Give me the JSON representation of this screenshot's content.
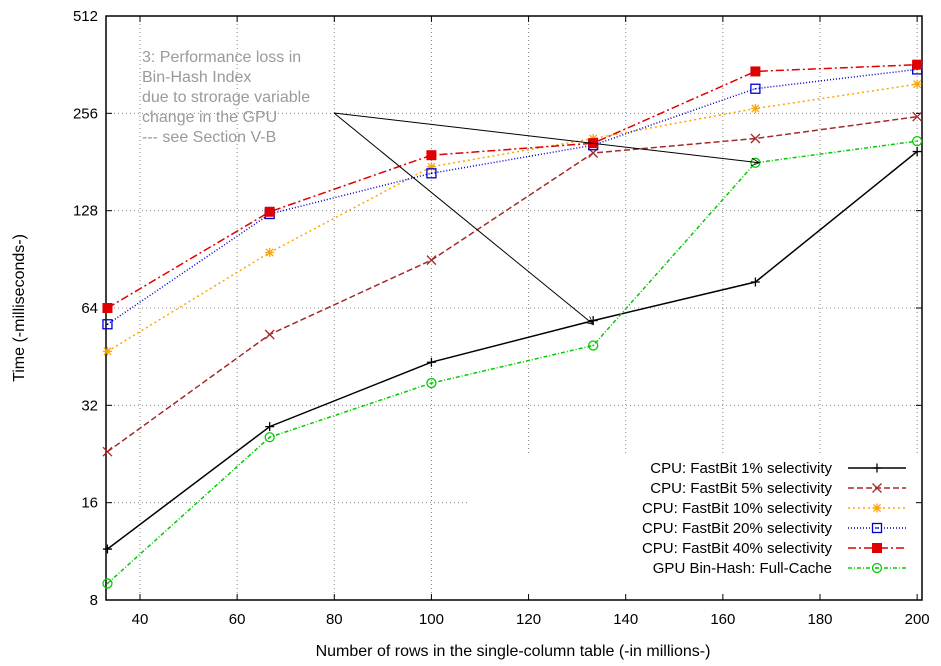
{
  "chart_data": {
    "type": "line",
    "xlabel": "Number of rows in the single-column table (-in millions-)",
    "ylabel": "Time (-milliseconds-)",
    "xlim": [
      33,
      201
    ],
    "ylim": [
      8,
      512
    ],
    "yscale": "log2",
    "x_ticks": [
      40,
      60,
      80,
      100,
      120,
      140,
      160,
      180,
      200
    ],
    "y_ticks": [
      8,
      16,
      32,
      64,
      128,
      256,
      512
    ],
    "grid": true,
    "legend_position": "bottom-right",
    "x": [
      33.3,
      66.7,
      100,
      133.3,
      166.7,
      200
    ],
    "series": [
      {
        "name": "CPU: FastBit 1% selectivity",
        "color": "#000000",
        "dash": "",
        "marker": "plus",
        "values": [
          11.5,
          27.5,
          43.5,
          58.5,
          77,
          195
        ]
      },
      {
        "name": "CPU: FastBit 5% selectivity",
        "color": "#a52a2a",
        "dash": "6,3",
        "marker": "x",
        "values": [
          23,
          53,
          90,
          193,
          214,
          250
        ]
      },
      {
        "name": "CPU: FastBit 10% selectivity",
        "color": "#ffa500",
        "dash": "2,3",
        "marker": "star",
        "values": [
          47,
          95,
          175,
          214,
          265,
          315
        ]
      },
      {
        "name": "CPU: FastBit 20% selectivity",
        "color": "#0000cc",
        "dash": "1,2",
        "marker": "square-open",
        "values": [
          57,
          125,
          167,
          204,
          305,
          350
        ]
      },
      {
        "name": "CPU: FastBit 40% selectivity",
        "color": "#e00000",
        "dash": "8,3,2,3",
        "marker": "square-filled",
        "values": [
          64,
          127,
          190,
          207,
          345,
          362
        ]
      },
      {
        "name": "GPU Bin-Hash: Full-Cache",
        "color": "#00cc00",
        "dash": "4,2,1,2",
        "marker": "circle-open",
        "values": [
          9,
          25.5,
          37.5,
          49,
          180,
          210
        ]
      }
    ],
    "annotation": {
      "lines": [
        "3: Performance loss in",
        "Bin-Hash Index",
        "due to strorage variable",
        "change in the GPU",
        "--- see Section V-B"
      ],
      "arrow_targets": [
        {
          "x": 167.5,
          "y": 180
        },
        {
          "x": 133.3,
          "y": 57
        }
      ]
    }
  },
  "colors": {
    "grid": "#888888",
    "axis": "#000000",
    "annotation": "#9a9a9a"
  }
}
